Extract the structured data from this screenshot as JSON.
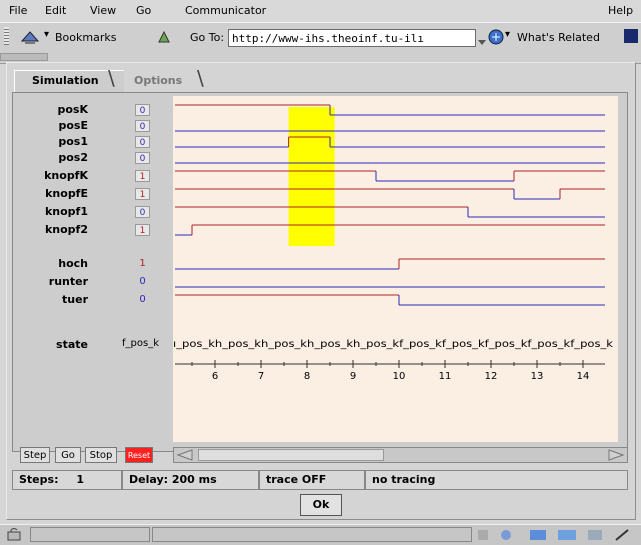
{
  "menubar": {
    "items": [
      "File",
      "Edit",
      "View",
      "Go",
      "Communicator"
    ],
    "help": "Help"
  },
  "toolbar": {
    "bookmarks_label": "Bookmarks",
    "goto_label": "Go To:",
    "url": "http://www-ihs.theoinf.tu-ilı",
    "whats_related_label": "What's Related"
  },
  "tabs": {
    "simulation": "Simulation",
    "options": "Options"
  },
  "signals": [
    {
      "name": "posK",
      "value": "0",
      "style": "box"
    },
    {
      "name": "posE",
      "value": "0",
      "style": "box"
    },
    {
      "name": "pos1",
      "value": "0",
      "style": "box"
    },
    {
      "name": "pos2",
      "value": "0",
      "style": "box"
    },
    {
      "name": "knopfK",
      "value": "1",
      "style": "box"
    },
    {
      "name": "knopfE",
      "value": "1",
      "style": "box"
    },
    {
      "name": "knopf1",
      "value": "0",
      "style": "box"
    },
    {
      "name": "knopf2",
      "value": "1",
      "style": "box"
    },
    {
      "name": "hoch",
      "value": "1",
      "style": "plain"
    },
    {
      "name": "runter",
      "value": "0",
      "style": "plain"
    },
    {
      "name": "tuer",
      "value": "0",
      "style": "plain"
    }
  ],
  "state": {
    "label": "state",
    "value": "f_pos_k",
    "trace_text": "ı_pos_kh_pos_kh_pos_kh_pos_kh_pos_kf_pos_kf_pos_kf_pos_kf_pos_kf_pos_k"
  },
  "time_axis": {
    "ticks": [
      "6",
      "7",
      "8",
      "9",
      "10",
      "11",
      "12",
      "13",
      "14"
    ],
    "highlight_range": [
      7.6,
      8.6
    ]
  },
  "colors": {
    "one": "#b22222",
    "zero": "#2b2bb8",
    "highlight": "#ffff00",
    "plot_bg": "#fbeee2"
  },
  "controls": {
    "step": "Step",
    "go": "Go",
    "stop": "Stop",
    "reset": "Reset"
  },
  "status": {
    "steps_label": "Steps:",
    "steps_value": "1",
    "delay": "Delay: 200 ms",
    "trace": "trace OFF",
    "tracing": "no tracing"
  },
  "ok_label": "Ok"
}
